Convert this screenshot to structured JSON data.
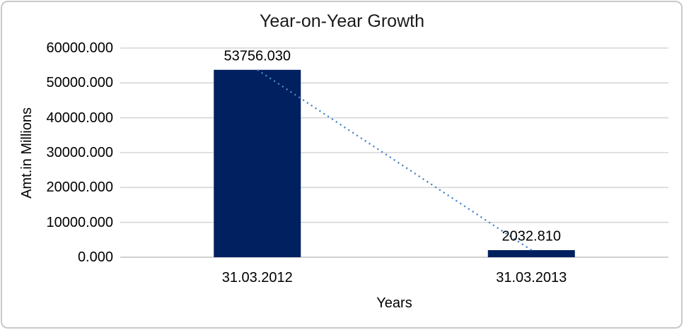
{
  "chart_data": {
    "type": "bar",
    "title": "Year-on-Year Growth",
    "xlabel": "Years",
    "ylabel": "Amt.in Millions",
    "categories": [
      "31.03.2012",
      "31.03.2013"
    ],
    "values": [
      53756.03,
      2032.81
    ],
    "data_labels": [
      "53756.030",
      "2032.810"
    ],
    "y_ticks": [
      {
        "value": 0,
        "label": "0.000"
      },
      {
        "value": 10000,
        "label": "10000.000"
      },
      {
        "value": 20000,
        "label": "20000.000"
      },
      {
        "value": 30000,
        "label": "30000.000"
      },
      {
        "value": 40000,
        "label": "40000.000"
      },
      {
        "value": 50000,
        "label": "50000.000"
      },
      {
        "value": 60000,
        "label": "60000.000"
      }
    ],
    "ylim": [
      0,
      60000
    ],
    "grid": true,
    "legend": "none",
    "trendline": {
      "type": "linear",
      "style": "dotted",
      "from_value": 53756.03,
      "to_value": 2032.81
    },
    "colors": {
      "bar": "#002060",
      "trendline": "#4a85c6",
      "gridline": "#d6d6d6",
      "axis_line": "#c0c0c0",
      "text": "#000000",
      "chart_border": "#c9c9c9"
    }
  }
}
